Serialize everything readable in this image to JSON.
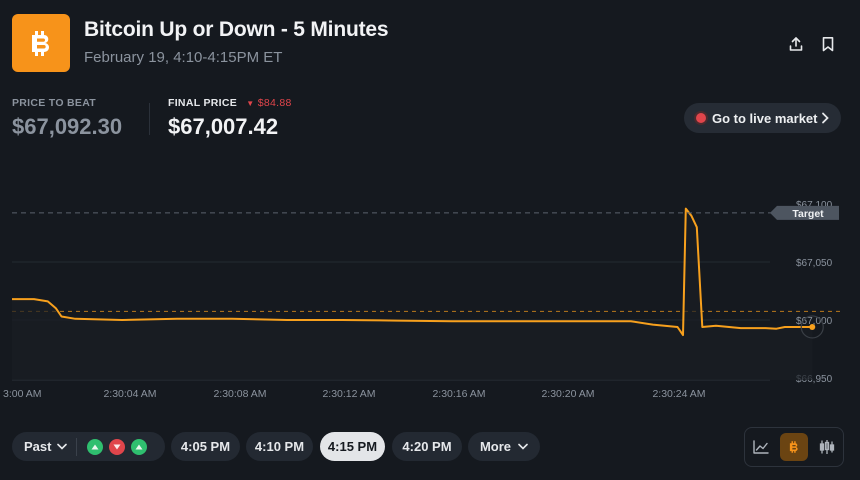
{
  "header": {
    "title": "Bitcoin Up or Down - 5 Minutes",
    "subtitle": "February 19, 4:10-4:15PM ET",
    "logo_icon": "bitcoin-icon",
    "share_icon": "share-icon",
    "bookmark_icon": "bookmark-icon",
    "brand_color": "#f7931a"
  },
  "stats": {
    "price_to_beat_label": "PRICE TO BEAT",
    "price_to_beat_value": "$67,092.30",
    "final_price_label": "FINAL PRICE",
    "final_delta": "$84.88",
    "final_price_value": "$67,007.42",
    "down_color": "#e0454b"
  },
  "live_button": {
    "label": "Go to live market"
  },
  "chart_data": {
    "type": "line",
    "x_labels": [
      "3:00 AM",
      "2:30:04 AM",
      "2:30:08 AM",
      "2:30:12 AM",
      "2:30:16 AM",
      "2:30:20 AM",
      "2:30:24 AM"
    ],
    "y_labels": [
      "$67,100",
      "$67,050",
      "$67,000",
      "$66,950"
    ],
    "ylim": [
      66950,
      67100
    ],
    "target_label": "Target",
    "target_value": 67092.3,
    "reference_value": 67007.42,
    "line_color": "#f7a01d",
    "series": [
      {
        "values": [
          [
            0,
            67018
          ],
          [
            0.8,
            67018
          ],
          [
            1.3,
            67016
          ],
          [
            1.6,
            67010
          ],
          [
            1.8,
            67003
          ],
          [
            2.3,
            67001
          ],
          [
            4,
            67000
          ],
          [
            6,
            67001
          ],
          [
            8,
            67001
          ],
          [
            10,
            67000
          ],
          [
            12,
            67000
          ],
          [
            14,
            66999.5
          ],
          [
            16,
            66999
          ],
          [
            18,
            66999
          ],
          [
            20,
            66999
          ],
          [
            22.5,
            66999
          ],
          [
            23.3,
            66996
          ],
          [
            24.2,
            66994
          ],
          [
            24.4,
            66987
          ],
          [
            24.5,
            67096
          ],
          [
            24.7,
            67090
          ],
          [
            24.9,
            67080
          ],
          [
            25.1,
            66994
          ],
          [
            25.6,
            66995
          ],
          [
            26.5,
            66993
          ],
          [
            27.4,
            66993
          ],
          [
            27.8,
            66992.5
          ],
          [
            28.1,
            66994
          ],
          [
            29.1,
            66994
          ]
        ]
      }
    ],
    "grid": true
  },
  "controls": {
    "past_label": "Past",
    "times": [
      {
        "label": "4:05 PM",
        "active": false
      },
      {
        "label": "4:10 PM",
        "active": false
      },
      {
        "label": "4:15 PM",
        "active": true
      },
      {
        "label": "4:20 PM",
        "active": false
      }
    ],
    "more_label": "More",
    "past_results": [
      "up",
      "down",
      "up"
    ],
    "up_color": "#2fbf6f",
    "view_icons": [
      "line-chart-icon",
      "bitcoin-icon",
      "candlestick-icon"
    ]
  }
}
